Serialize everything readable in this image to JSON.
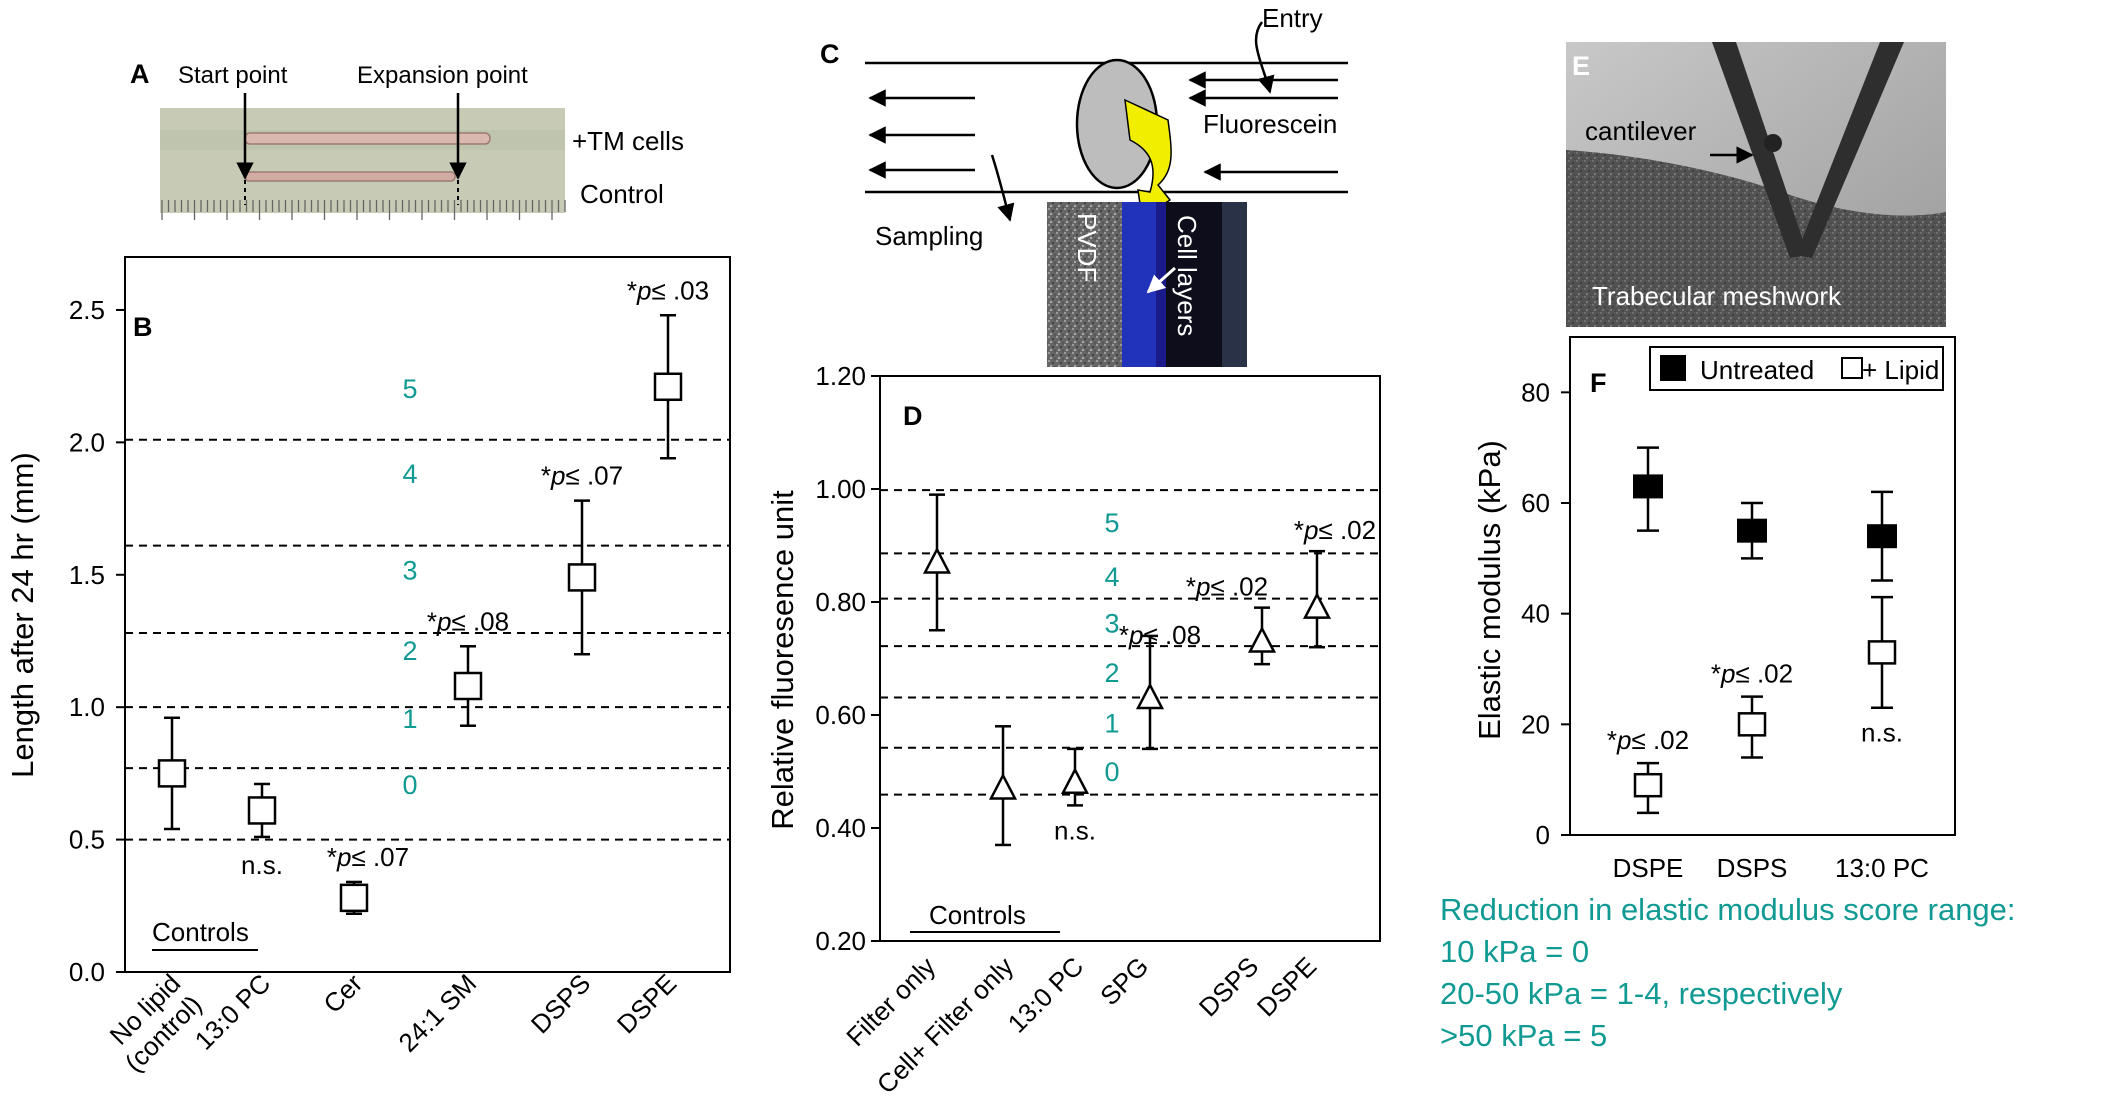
{
  "colors": {
    "teal": "#119a93",
    "ink": "#000000",
    "blue": "#2233bb",
    "yellow": "#f2ee00"
  },
  "panelA": {
    "letter": "A",
    "start": "Start point",
    "expansion": "Expansion point",
    "tm": "+TM cells",
    "control": "Control"
  },
  "panelC": {
    "letter": "C",
    "entry": "Entry",
    "fluorescein": "Fluorescein",
    "sampling": "Sampling",
    "pvdf": "PVDF",
    "cell_layers": "Cell layers"
  },
  "panelE": {
    "letter": "E",
    "cantilever": "cantilever",
    "trabecular": "Trabecular meshwork"
  },
  "chart_data": [
    {
      "id": "B",
      "type": "scatter",
      "letter": "B",
      "ylabel": "Length after 24 hr (mm)",
      "ylim": [
        0,
        2.7
      ],
      "yticks": [
        0.0,
        0.5,
        1.0,
        1.5,
        2.0,
        2.5
      ],
      "ytick_labels": [
        "0.0",
        "0.5",
        "1.0",
        "1.5",
        "2.0",
        "2.5"
      ],
      "categories": [
        "No lipid\n(control)",
        "13:0 PC",
        "Cer",
        "24:1 SM",
        "DSPS",
        "DSPE"
      ],
      "values": [
        0.75,
        0.61,
        0.28,
        1.08,
        1.49,
        2.21
      ],
      "err_low": [
        0.54,
        0.51,
        0.22,
        0.93,
        1.2,
        1.94
      ],
      "err_high": [
        0.96,
        0.71,
        0.34,
        1.23,
        1.78,
        2.48
      ],
      "marker": "open-square",
      "annotations": [
        "",
        "n.s.",
        "*p≤ .07",
        "*p≤ .08",
        "*p≤ .07",
        "*p≤ .03"
      ],
      "score_lines": [
        0.5,
        0.77,
        1.0,
        1.28,
        1.61,
        2.01
      ],
      "scores": [
        "0",
        "1",
        "2",
        "3",
        "4",
        "5"
      ],
      "controls_label": "Controls"
    },
    {
      "id": "D",
      "type": "scatter",
      "letter": "D",
      "ylabel": "Relative fluoresence unit",
      "ylim": [
        0.2,
        1.2
      ],
      "yticks": [
        0.2,
        0.4,
        0.6,
        0.8,
        1.0,
        1.2
      ],
      "ytick_labels": [
        "0.20",
        "0.40",
        "0.60",
        "0.80",
        "1.00",
        "1.20"
      ],
      "categories": [
        "Filter only",
        "Cell+ Filter only",
        "13:0 PC",
        "SPG",
        "DSPS",
        "DSPE"
      ],
      "values": [
        0.87,
        0.47,
        0.48,
        0.63,
        0.73,
        0.79
      ],
      "err_low": [
        0.75,
        0.37,
        0.44,
        0.54,
        0.69,
        0.72
      ],
      "err_high": [
        0.99,
        0.58,
        0.54,
        0.74,
        0.79,
        0.89
      ],
      "marker": "open-triangle",
      "annotations": [
        "",
        "",
        "n.s.",
        "*p≤ .08",
        "*p≤ .02",
        "*p≤ .02"
      ],
      "score_lines": [
        0.459,
        0.542,
        0.631,
        0.722,
        0.806,
        0.886,
        0.998
      ],
      "scores": [
        "0",
        "1",
        "2",
        "3",
        "4",
        "5"
      ],
      "controls_label": "Controls"
    },
    {
      "id": "F",
      "type": "scatter",
      "letter": "F",
      "ylabel": "Elastic modulus (kPa)",
      "ylim": [
        0,
        90
      ],
      "yticks": [
        0,
        20,
        40,
        60,
        80
      ],
      "ytick_labels": [
        "0",
        "20",
        "40",
        "60",
        "80"
      ],
      "categories": [
        "DSPE",
        "DSPS",
        "13:0 PC"
      ],
      "series": [
        {
          "name": "Untreated",
          "marker": "filled-square",
          "values": [
            63,
            55,
            54
          ],
          "err_low": [
            55,
            50,
            46
          ],
          "err_high": [
            70,
            60,
            62
          ]
        },
        {
          "name": "+ Lipid",
          "marker": "open-square",
          "values": [
            9,
            20,
            33
          ],
          "err_low": [
            4,
            14,
            23
          ],
          "err_high": [
            13,
            25,
            43
          ]
        }
      ],
      "annotations": [
        "*p≤ .02",
        "*p≤ .02",
        "n.s."
      ],
      "legend": "top-right",
      "footnote": [
        "Reduction in elastic modulus score range:",
        "10 kPa = 0",
        "20-50 kPa = 1-4, respectively",
        ">50 kPa = 5"
      ]
    }
  ]
}
